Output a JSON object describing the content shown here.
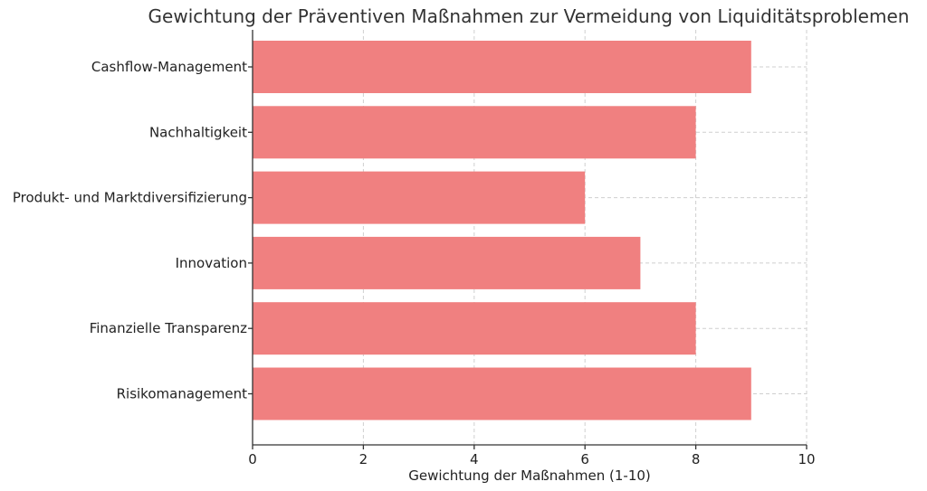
{
  "chart_data": {
    "type": "bar",
    "orientation": "horizontal",
    "title": "Gewichtung der Präventiven Maßnahmen zur Vermeidung von Liquiditätsproblemen",
    "xlabel": "Gewichtung der Maßnahmen (1-10)",
    "ylabel": "",
    "categories": [
      "Cashflow-Management",
      "Nachhaltigkeit",
      "Produkt- und Marktdiversifizierung",
      "Innovation",
      "Finanzielle Transparenz",
      "Risikomanagement"
    ],
    "values": [
      9,
      8,
      6,
      7,
      8,
      9
    ],
    "xlim": [
      0,
      10
    ],
    "xticks": [
      "0",
      "2",
      "4",
      "6",
      "8",
      "10"
    ],
    "grid": true,
    "bar_color": "#f08080"
  }
}
